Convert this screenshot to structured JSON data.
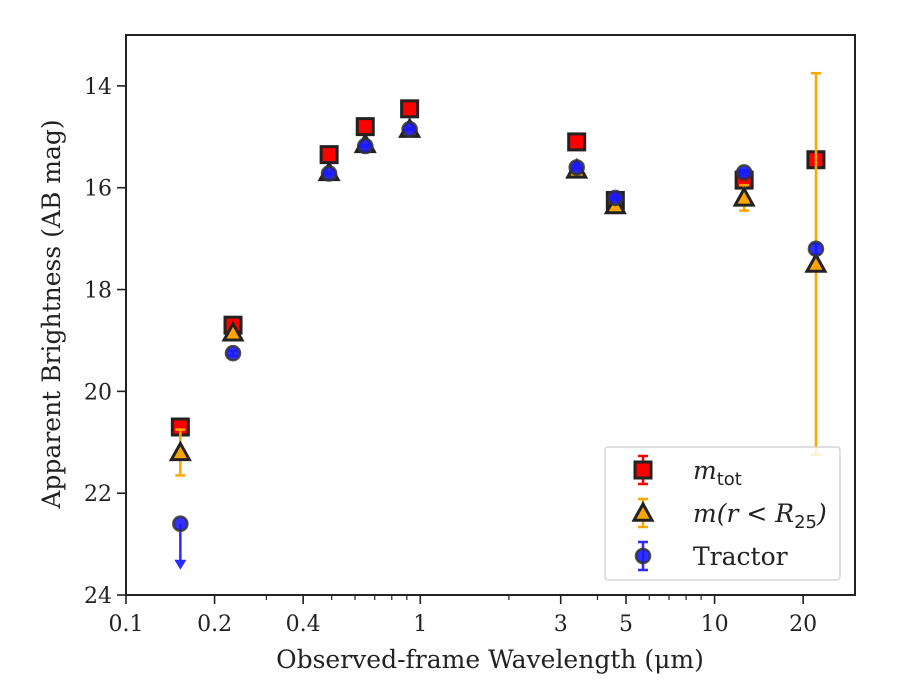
{
  "chart_data": {
    "type": "scatter",
    "xlabel": "Observed-frame Wavelength (μm)",
    "ylabel": "Apparent Brightness (AB mag)",
    "x_scale": "log",
    "xlim": [
      0.1,
      30
    ],
    "ylim": [
      24,
      13
    ],
    "y_inverted": true,
    "x_ticks": [
      {
        "value": 0.1,
        "label": "0.1"
      },
      {
        "value": 0.2,
        "label": "0.2"
      },
      {
        "value": 0.4,
        "label": "0.4"
      },
      {
        "value": 1,
        "label": "1"
      },
      {
        "value": 3,
        "label": "3"
      },
      {
        "value": 5,
        "label": "5"
      },
      {
        "value": 10,
        "label": "10"
      },
      {
        "value": 20,
        "label": "20"
      }
    ],
    "y_ticks": [
      {
        "value": 14,
        "label": "14"
      },
      {
        "value": 16,
        "label": "16"
      },
      {
        "value": 18,
        "label": "18"
      },
      {
        "value": 20,
        "label": "20"
      },
      {
        "value": 22,
        "label": "22"
      },
      {
        "value": 24,
        "label": "24"
      }
    ],
    "grid": false,
    "legend_position": "lower-right",
    "series": [
      {
        "name": "m_tot",
        "legend_label": "m",
        "legend_sub": "tot",
        "marker": "square",
        "fill": "#ff0000",
        "edge": "#222222",
        "err_color": "#ff0000",
        "points": [
          {
            "x": 0.153,
            "y": 20.7,
            "err": 0.1
          },
          {
            "x": 0.231,
            "y": 18.7,
            "err": 0.05
          },
          {
            "x": 0.49,
            "y": 15.35,
            "err": 0.02
          },
          {
            "x": 0.65,
            "y": 14.8,
            "err": 0.02
          },
          {
            "x": 0.92,
            "y": 14.45,
            "err": 0.02
          },
          {
            "x": 3.4,
            "y": 15.1,
            "err": 0.02
          },
          {
            "x": 4.6,
            "y": 16.25,
            "err": 0.02
          },
          {
            "x": 12.6,
            "y": 15.85,
            "err": 0.05
          },
          {
            "x": 22.1,
            "y": 15.45,
            "err": 0.05
          }
        ]
      },
      {
        "name": "m(r < R25)",
        "legend_label": "m(r < R",
        "legend_sub": "25",
        "legend_suffix": ")",
        "marker": "triangle",
        "fill": "#ffa500",
        "edge": "#222222",
        "err_color": "#ffa500",
        "points": [
          {
            "x": 0.153,
            "y": 21.2,
            "err": 0.45
          },
          {
            "x": 0.231,
            "y": 18.85,
            "err": 0.05
          },
          {
            "x": 0.49,
            "y": 15.7,
            "err": 0.02
          },
          {
            "x": 0.65,
            "y": 15.15,
            "err": 0.02
          },
          {
            "x": 0.92,
            "y": 14.85,
            "err": 0.02
          },
          {
            "x": 3.4,
            "y": 15.65,
            "err": 0.02
          },
          {
            "x": 4.6,
            "y": 16.35,
            "err": 0.02
          },
          {
            "x": 12.6,
            "y": 16.2,
            "err": 0.25
          },
          {
            "x": 22.1,
            "y": 17.5,
            "err": 3.75
          }
        ]
      },
      {
        "name": "Tractor",
        "legend_label": "Tractor",
        "marker": "circle",
        "fill": "#1a1aff",
        "edge": "#333333",
        "err_color": "#2b2bff",
        "points": [
          {
            "x": 0.153,
            "y": 22.6,
            "upper_limit": true
          },
          {
            "x": 0.231,
            "y": 19.25,
            "err": 0.05
          },
          {
            "x": 0.49,
            "y": 15.72,
            "err": 0.02
          },
          {
            "x": 0.65,
            "y": 15.18,
            "err": 0.02
          },
          {
            "x": 0.92,
            "y": 14.85,
            "err": 0.02
          },
          {
            "x": 3.4,
            "y": 15.6,
            "err": 0.02
          },
          {
            "x": 4.6,
            "y": 16.2,
            "err": 0.02
          },
          {
            "x": 12.6,
            "y": 15.7,
            "err": 0.05
          },
          {
            "x": 22.1,
            "y": 17.2,
            "err": 0.1
          }
        ]
      }
    ]
  }
}
